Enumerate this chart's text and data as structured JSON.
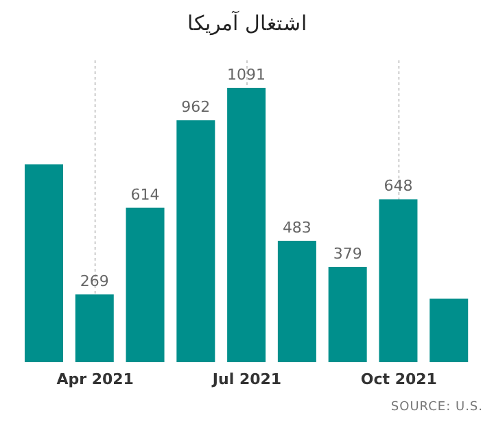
{
  "chart_data": {
    "type": "bar",
    "title": "اشتغال آمریکا",
    "categories": [
      null,
      "Apr 2021",
      null,
      null,
      "Jul 2021",
      null,
      null,
      "Oct 2021",
      null
    ],
    "values": [
      787,
      269,
      614,
      962,
      1091,
      483,
      379,
      648,
      252
    ],
    "value_labels": [
      null,
      "269",
      "614",
      "962",
      "1091",
      "483",
      "379",
      "648",
      null
    ],
    "color": "#008f8c",
    "ylim": [
      0,
      1200
    ],
    "grid": "x",
    "tick_labels": "x",
    "annotations": [
      "SOURCE: U.S."
    ]
  }
}
